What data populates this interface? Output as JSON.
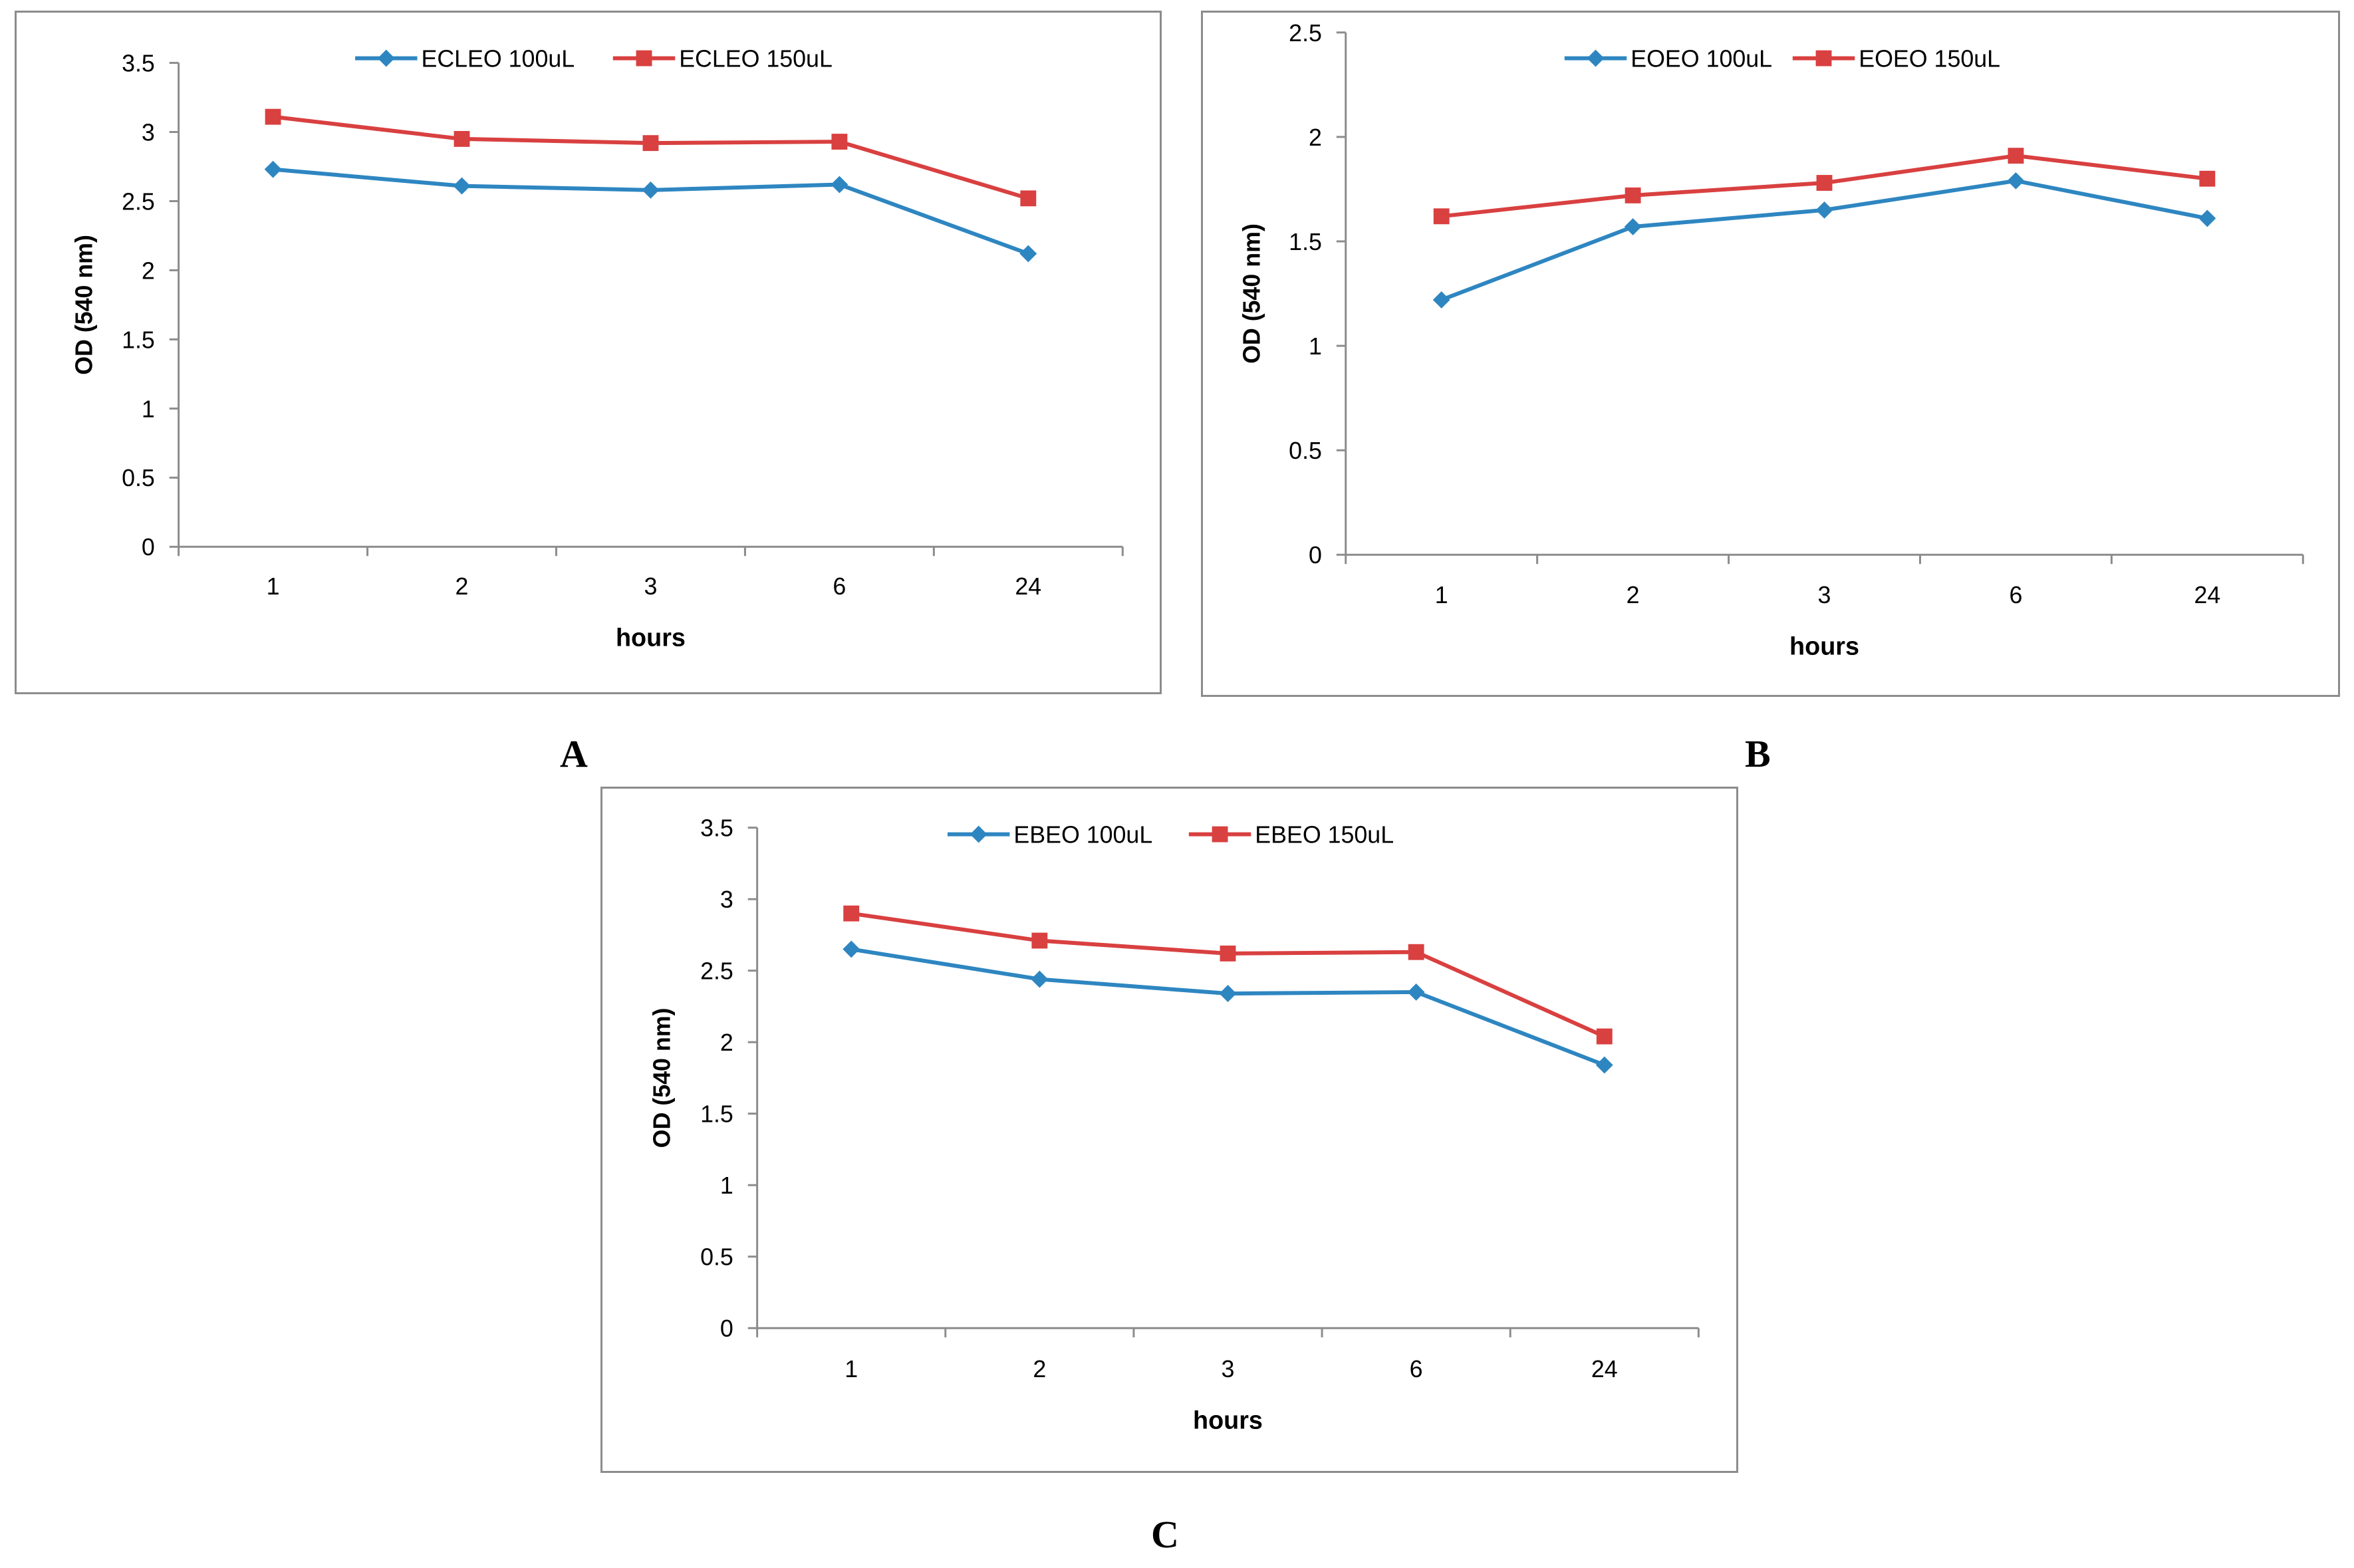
{
  "chart_data": [
    {
      "type": "line",
      "panel_label": "A",
      "categories": [
        "1",
        "2",
        "3",
        "6",
        "24"
      ],
      "series": [
        {
          "name": "ECLEO 100uL",
          "color": "#2e86c1",
          "marker": "diamond",
          "values": [
            2.73,
            2.61,
            2.58,
            2.62,
            2.12
          ]
        },
        {
          "name": "ECLEO 150uL",
          "color": "#d94040",
          "marker": "square",
          "values": [
            3.11,
            2.95,
            2.92,
            2.93,
            2.52
          ]
        }
      ],
      "y_ticks": [
        "0",
        "0.5",
        "1",
        "1.5",
        "2",
        "2.5",
        "3",
        "3.5"
      ],
      "ylim": [
        0,
        3.5
      ],
      "xlabel": "hours",
      "ylabel": "OD (540 nm)",
      "legend": "top-center",
      "grid": false
    },
    {
      "type": "line",
      "panel_label": "B",
      "categories": [
        "1",
        "2",
        "3",
        "6",
        "24"
      ],
      "series": [
        {
          "name": "EOEO 100uL",
          "color": "#2e86c1",
          "marker": "diamond",
          "values": [
            1.22,
            1.57,
            1.65,
            1.79,
            1.61
          ]
        },
        {
          "name": "EOEO 150uL",
          "color": "#d94040",
          "marker": "square",
          "values": [
            1.62,
            1.72,
            1.78,
            1.91,
            1.8
          ]
        }
      ],
      "y_ticks": [
        "0",
        "0.5",
        "1",
        "1.5",
        "2",
        "2.5"
      ],
      "ylim": [
        0,
        2.5
      ],
      "xlabel": "hours",
      "ylabel": "OD (540 nm)",
      "legend": "top-center",
      "grid": false
    },
    {
      "type": "line",
      "panel_label": "C",
      "categories": [
        "1",
        "2",
        "3",
        "6",
        "24"
      ],
      "series": [
        {
          "name": "EBEO 100uL",
          "color": "#2e86c1",
          "marker": "diamond",
          "values": [
            2.65,
            2.44,
            2.34,
            2.35,
            1.84
          ]
        },
        {
          "name": "EBEO 150uL",
          "color": "#d94040",
          "marker": "square",
          "values": [
            2.9,
            2.71,
            2.62,
            2.63,
            2.04
          ]
        }
      ],
      "y_ticks": [
        "0",
        "0.5",
        "1",
        "1.5",
        "2",
        "2.5",
        "3",
        "3.5"
      ],
      "ylim": [
        0,
        3.5
      ],
      "xlabel": "hours",
      "ylabel": "OD (540 nm)",
      "legend": "top-center",
      "grid": false
    }
  ]
}
